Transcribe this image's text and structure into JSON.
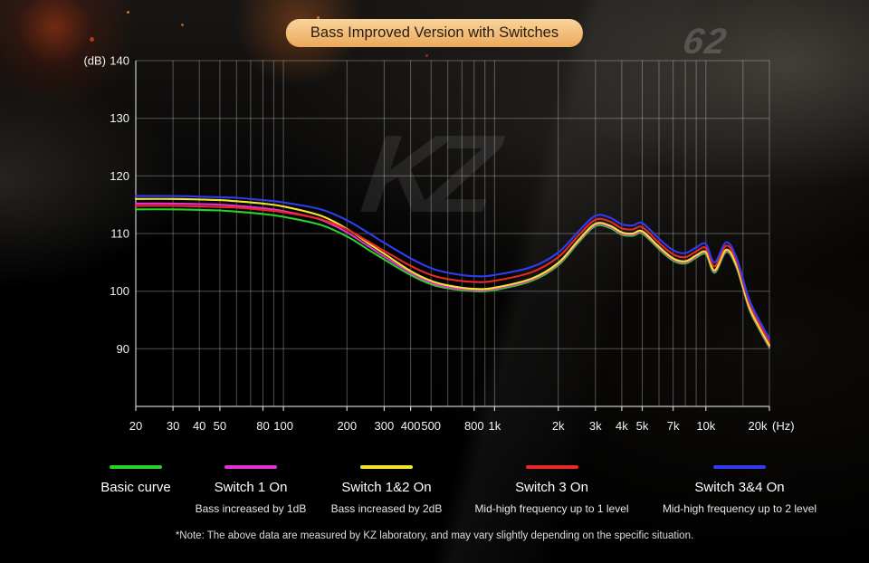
{
  "title": "Bass Improved Version with Switches",
  "watermark": "KZ",
  "background": {
    "number_label": "62"
  },
  "note": "*Note: The above data are measured by KZ laboratory, and may vary slightly depending on the specific situation.",
  "chart_data": {
    "type": "line",
    "x_scale": "log",
    "xlim": [
      20,
      20000
    ],
    "ylim": [
      80,
      140
    ],
    "ylabel_unit": "(dB)",
    "xlabel_unit": "(Hz)",
    "y_ticks": [
      140,
      130,
      120,
      110,
      100,
      90
    ],
    "x_ticks": [
      {
        "hz": 20,
        "label": "20"
      },
      {
        "hz": 30,
        "label": "30"
      },
      {
        "hz": 40,
        "label": "40"
      },
      {
        "hz": 50,
        "label": "50"
      },
      {
        "hz": 80,
        "label": "80"
      },
      {
        "hz": 100,
        "label": "100"
      },
      {
        "hz": 200,
        "label": "200"
      },
      {
        "hz": 300,
        "label": "300"
      },
      {
        "hz": 400,
        "label": "400"
      },
      {
        "hz": 500,
        "label": "500"
      },
      {
        "hz": 800,
        "label": "800"
      },
      {
        "hz": 1000,
        "label": "1k"
      },
      {
        "hz": 2000,
        "label": "2k"
      },
      {
        "hz": 3000,
        "label": "3k"
      },
      {
        "hz": 4000,
        "label": "4k"
      },
      {
        "hz": 5000,
        "label": "5k"
      },
      {
        "hz": 7000,
        "label": "7k"
      },
      {
        "hz": 10000,
        "label": "10k"
      },
      {
        "hz": 20000,
        "label": "20k"
      }
    ],
    "grid_freqs": [
      20,
      30,
      40,
      50,
      60,
      70,
      80,
      90,
      100,
      200,
      300,
      400,
      500,
      600,
      700,
      800,
      900,
      1000,
      2000,
      3000,
      4000,
      5000,
      6000,
      7000,
      8000,
      9000,
      10000,
      15000,
      20000
    ],
    "grid": true,
    "legend_position": "bottom",
    "x": [
      20,
      30,
      40,
      50,
      60,
      80,
      100,
      150,
      200,
      250,
      300,
      400,
      500,
      600,
      800,
      1000,
      1500,
      2000,
      2500,
      3000,
      3500,
      4000,
      4500,
      5000,
      6000,
      7000,
      8000,
      9000,
      10000,
      11000,
      12500,
      14000,
      16000,
      18000,
      20000
    ],
    "series": [
      {
        "name": "Basic curve",
        "slug": "basic-curve",
        "description": "",
        "color": "#29d129",
        "values": [
          114.2,
          114.2,
          114.1,
          114.0,
          113.8,
          113.4,
          112.9,
          111.5,
          109.5,
          107.3,
          105.5,
          102.8,
          101.2,
          100.5,
          100.0,
          100.2,
          101.8,
          104.5,
          108.5,
          111.3,
          111.0,
          109.8,
          109.6,
          110.0,
          107.3,
          105.3,
          104.8,
          105.8,
          106.4,
          103.2,
          106.8,
          104.0,
          97.0,
          93.2,
          90.2
        ]
      },
      {
        "name": "Switch 1 On",
        "slug": "switch-1-on",
        "description": "Bass increased by 1dB",
        "color": "#e332cf",
        "values": [
          115.2,
          115.2,
          115.1,
          115.0,
          114.8,
          114.4,
          113.9,
          112.4,
          110.2,
          107.9,
          106.0,
          103.2,
          101.5,
          100.7,
          100.2,
          100.4,
          102.0,
          104.7,
          108.7,
          111.5,
          111.2,
          110.0,
          109.8,
          110.2,
          107.5,
          105.5,
          105.0,
          106.0,
          106.6,
          103.4,
          107.0,
          104.2,
          97.2,
          93.4,
          90.4
        ]
      },
      {
        "name": "Switch 1&2 On",
        "slug": "switch-1-2-on",
        "description": "Bass increased by 2dB",
        "color": "#f3e42e",
        "values": [
          116.0,
          116.0,
          115.9,
          115.8,
          115.6,
          115.2,
          114.7,
          113.1,
          110.8,
          108.4,
          106.5,
          103.5,
          101.8,
          101.0,
          100.4,
          100.6,
          102.2,
          104.9,
          108.9,
          111.7,
          111.4,
          110.2,
          110.0,
          110.4,
          107.7,
          105.7,
          105.2,
          106.2,
          106.8,
          103.6,
          107.2,
          104.4,
          97.4,
          93.6,
          90.6
        ]
      },
      {
        "name": "Switch 3 On",
        "slug": "switch-3-on",
        "description": "Mid-high frequency up to 1 level",
        "color": "#ea2828",
        "values": [
          114.8,
          114.8,
          114.7,
          114.6,
          114.5,
          114.1,
          113.7,
          112.5,
          110.7,
          108.7,
          107.0,
          104.4,
          102.8,
          102.1,
          101.6,
          101.8,
          103.3,
          105.9,
          109.7,
          112.4,
          112.1,
          110.9,
          110.7,
          111.1,
          108.4,
          106.4,
          105.9,
          106.9,
          107.5,
          104.3,
          107.9,
          105.1,
          98.1,
          94.2,
          91.2
        ]
      },
      {
        "name": "Switch 3&4 On",
        "slug": "switch-3-4-on",
        "description": "Mid-high frequency up to 2 level",
        "color": "#2f3cf0",
        "values": [
          116.5,
          116.5,
          116.4,
          116.3,
          116.2,
          115.8,
          115.4,
          114.2,
          112.3,
          110.2,
          108.4,
          105.7,
          104.0,
          103.2,
          102.6,
          102.8,
          104.2,
          106.7,
          110.4,
          113.1,
          112.8,
          111.6,
          111.4,
          111.8,
          109.1,
          107.1,
          106.6,
          107.6,
          108.2,
          105.0,
          108.5,
          105.7,
          98.7,
          94.8,
          91.8
        ]
      }
    ]
  }
}
